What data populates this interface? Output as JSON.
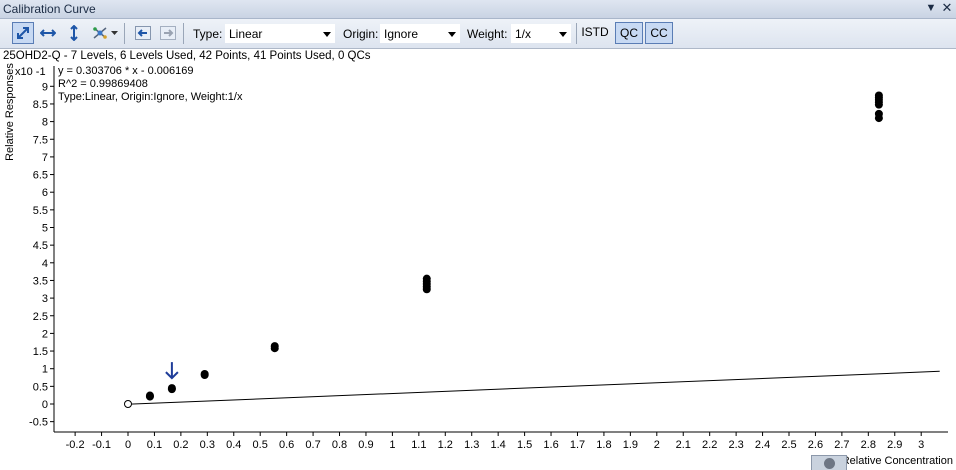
{
  "window": {
    "title": "Calibration Curve"
  },
  "toolbar": {
    "type_label": "Type:",
    "type_value": "Linear",
    "origin_label": "Origin:",
    "origin_value": "Ignore",
    "weight_label": "Weight:",
    "weight_value": "1/x",
    "istd_label": "ISTD",
    "qc_label": "QC",
    "cc_label": "CC"
  },
  "info": {
    "summary": "25OHD2-Q - 7 Levels, 6 Levels Used, 42 Points, 41 Points Used, 0 QCs"
  },
  "equation": {
    "line1": "y = 0.303706 * x  - 0.006169",
    "line2": "R^2 = 0.99869408",
    "line3": "Type:Linear, Origin:Ignore, Weight:1/x"
  },
  "chart_data": {
    "type": "scatter",
    "xlabel": "Relative Concentration",
    "ylabel": "Relative Responses",
    "y_multiplier": "x10 -1",
    "xlim": [
      -0.25,
      3.07
    ],
    "ylim": [
      -0.75,
      9.55
    ],
    "x_ticks": [
      "-0.2",
      "-0.1",
      "0",
      "0.1",
      "0.2",
      "0.3",
      "0.4",
      "0.5",
      "0.6",
      "0.7",
      "0.8",
      "0.9",
      "1",
      "1.1",
      "1.2",
      "1.3",
      "1.4",
      "1.5",
      "1.6",
      "1.7",
      "1.8",
      "1.9",
      "2",
      "2.1",
      "2.2",
      "2.3",
      "2.4",
      "2.5",
      "2.6",
      "2.7",
      "2.8",
      "2.9",
      "3"
    ],
    "y_ticks": [
      "-0.5",
      "0",
      "0.5",
      "1",
      "1.5",
      "2",
      "2.5",
      "3",
      "3.5",
      "4",
      "4.5",
      "5",
      "5.5",
      "6",
      "6.5",
      "7",
      "7.5",
      "8",
      "8.5",
      "9"
    ],
    "fit_line": {
      "slope": 0.303706,
      "intercept": -0.006169,
      "x_range": [
        -0.01,
        3.07
      ]
    },
    "points_used": [
      {
        "x": 0.083,
        "y": 0.21
      },
      {
        "x": 0.083,
        "y": 0.24
      },
      {
        "x": 0.166,
        "y": 0.42
      },
      {
        "x": 0.166,
        "y": 0.45
      },
      {
        "x": 0.29,
        "y": 0.82
      },
      {
        "x": 0.29,
        "y": 0.85
      },
      {
        "x": 0.555,
        "y": 1.58
      },
      {
        "x": 0.555,
        "y": 1.64
      },
      {
        "x": 1.13,
        "y": 3.25
      },
      {
        "x": 1.13,
        "y": 3.32
      },
      {
        "x": 1.13,
        "y": 3.4
      },
      {
        "x": 1.13,
        "y": 3.47
      },
      {
        "x": 1.13,
        "y": 3.55
      },
      {
        "x": 2.84,
        "y": 8.1
      },
      {
        "x": 2.84,
        "y": 8.22
      },
      {
        "x": 2.84,
        "y": 8.48
      },
      {
        "x": 2.84,
        "y": 8.55
      },
      {
        "x": 2.84,
        "y": 8.62
      },
      {
        "x": 2.84,
        "y": 8.68
      },
      {
        "x": 2.84,
        "y": 8.74
      }
    ],
    "points_excluded": [
      {
        "x": 0.0,
        "y": 0.0
      }
    ],
    "marker": {
      "x": 0.166,
      "y": 0.45,
      "label": "selected-point-arrow",
      "color": "#1f3d99"
    },
    "grid": false
  }
}
